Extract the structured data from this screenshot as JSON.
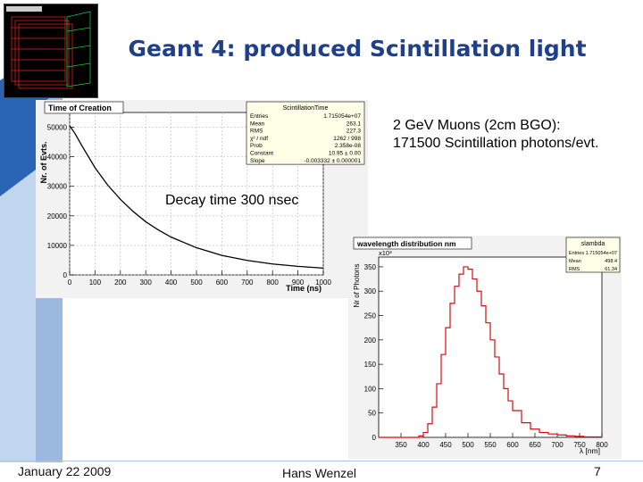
{
  "slide": {
    "title": "Geant 4: produced Scintillation light",
    "notes": {
      "muons_line1": "2 GeV Muons (2cm BGO):",
      "muons_line2": "171500 Scintillation photons/evt.",
      "decay": "Decay time 300 nsec"
    },
    "footer": {
      "date": "January 22 2009",
      "author": "Hans Wenzel",
      "page": "7"
    },
    "colors": {
      "title": "#1f3f88",
      "curve1": "#000000",
      "curve2": "#d01010",
      "stats_bg": "#ffffe8",
      "panel_bg": "#ffffff"
    }
  },
  "chart_data": [
    {
      "type": "line",
      "title": "Time of Creation",
      "xlabel": "Time (ns)",
      "ylabel": "Nr. of Evts.",
      "xlim": [
        0,
        1000
      ],
      "ylim": [
        0,
        55000
      ],
      "xticks": [
        "0",
        "100",
        "200",
        "300",
        "400",
        "500",
        "600",
        "700",
        "800",
        "900",
        "1000"
      ],
      "yticks": [
        "0",
        "10000",
        "20000",
        "30000",
        "40000",
        "50000"
      ],
      "grid": true,
      "series": [
        {
          "x": [
            0,
            20,
            50,
            100,
            150,
            200,
            250,
            300,
            350,
            400,
            500,
            600,
            700,
            800,
            900,
            1000
          ],
          "y": [
            50500,
            48000,
            43500,
            36300,
            30400,
            25600,
            21500,
            18000,
            15200,
            12800,
            9200,
            6600,
            4900,
            3700,
            2900,
            2300
          ]
        }
      ],
      "stats": {
        "name": "ScintillationTime",
        "rows": [
          [
            "Entries",
            "1.715054e+07"
          ],
          [
            "Mean",
            "263.1"
          ],
          [
            "RMS",
            "227.3"
          ],
          [
            "χ² / ndf",
            "1262 / 998"
          ],
          [
            "Prob",
            "2.358e-08"
          ],
          [
            "Constant",
            "10.95 ± 0.00"
          ],
          [
            "Slope",
            "-0.003332 ± 0.000001"
          ]
        ]
      }
    },
    {
      "type": "line",
      "title": "wavelength distribution nm",
      "xlabel": "λ [nm]",
      "ylabel": "Nr of Photons",
      "yscale_label": "x10³",
      "xlim": [
        300,
        800
      ],
      "ylim": [
        0,
        370
      ],
      "xticks": [
        "350",
        "400",
        "450",
        "500",
        "550",
        "600",
        "650",
        "700",
        "750",
        "800"
      ],
      "yticks": [
        "0",
        "50",
        "100",
        "150",
        "200",
        "250",
        "300",
        "350"
      ],
      "grid": false,
      "series": [
        {
          "x": [
            300,
            360,
            380,
            390,
            400,
            410,
            420,
            430,
            440,
            450,
            460,
            470,
            480,
            490,
            500,
            510,
            520,
            530,
            540,
            550,
            560,
            570,
            580,
            590,
            600,
            620,
            640,
            660,
            680,
            700,
            720,
            740,
            760,
            780,
            800
          ],
          "y": [
            0,
            0,
            0,
            3,
            10,
            28,
            62,
            110,
            170,
            225,
            275,
            310,
            335,
            350,
            345,
            325,
            300,
            270,
            235,
            200,
            165,
            130,
            100,
            75,
            55,
            30,
            17,
            10,
            7,
            5,
            3,
            2,
            1,
            1,
            0
          ]
        }
      ],
      "stats": {
        "name": "slambda",
        "rows": [
          [
            "Entries",
            "1.715054e+07"
          ],
          [
            "Mean",
            "498.4"
          ],
          [
            "RMS",
            "61.34"
          ]
        ]
      }
    }
  ]
}
